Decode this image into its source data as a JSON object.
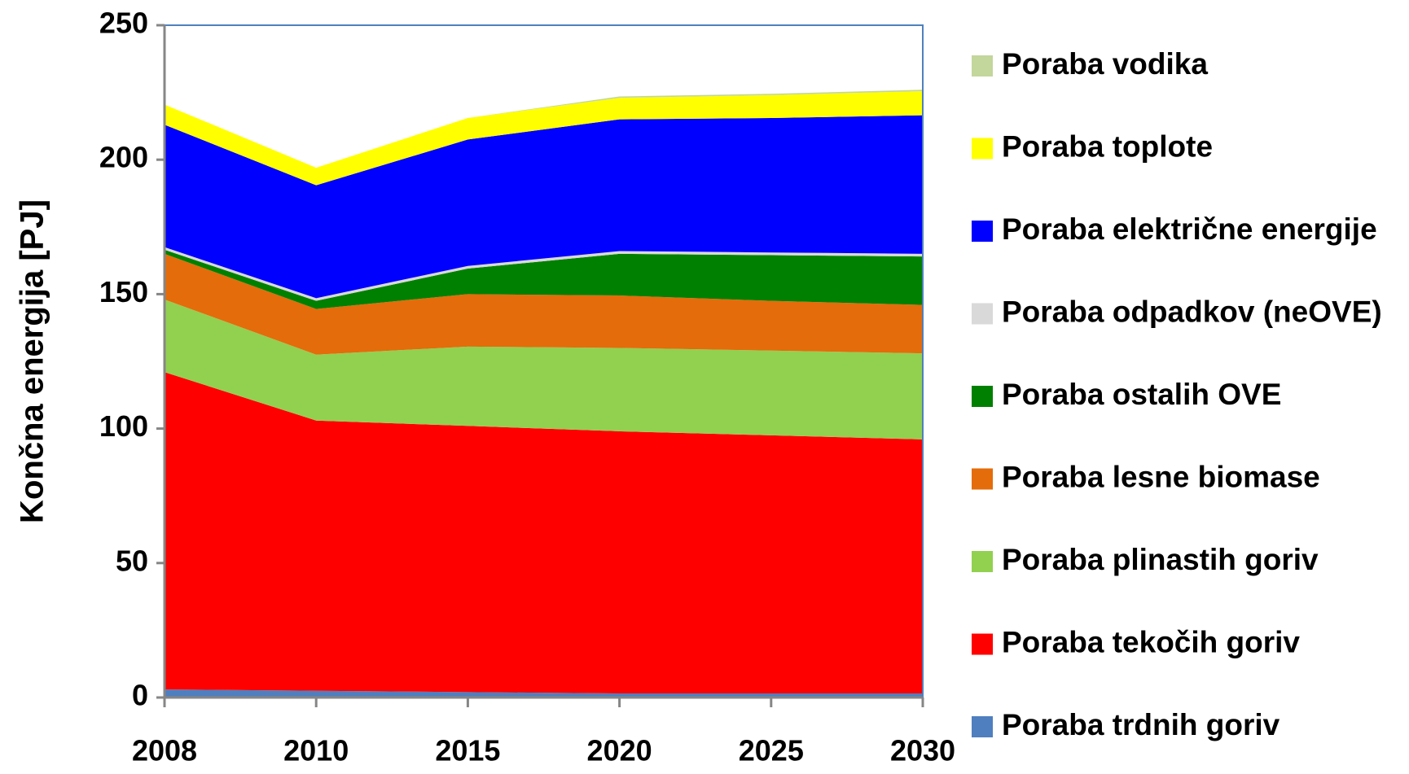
{
  "chart_data": {
    "type": "stacked_area",
    "y_label": "Končna energija [PJ]",
    "categories": [
      "2008",
      "2010",
      "2015",
      "2020",
      "2025",
      "2030"
    ],
    "ylim": [
      0,
      250
    ],
    "yticks": [
      0,
      50,
      100,
      150,
      200,
      250
    ],
    "series": [
      {
        "name": "Poraba trdnih goriv",
        "color": "#4f7fbf",
        "values": [
          3,
          2.5,
          2,
          1.5,
          1.5,
          1.5
        ]
      },
      {
        "name": "Poraba tekočih goriv",
        "color": "#ff0000",
        "values": [
          118,
          100.5,
          99,
          97.5,
          96,
          94.5
        ]
      },
      {
        "name": "Poraba plinastih goriv",
        "color": "#92d050",
        "values": [
          27,
          24.5,
          29.5,
          31,
          31.5,
          32
        ]
      },
      {
        "name": "Poraba lesne biomase",
        "color": "#e46c0a",
        "values": [
          17,
          17,
          19.5,
          19.5,
          18.5,
          18
        ]
      },
      {
        "name": "Poraba ostalih OVE",
        "color": "#008000",
        "values": [
          1.5,
          3,
          9.5,
          15.5,
          17,
          18
        ]
      },
      {
        "name": "Poraba odpadkov (neOVE)",
        "color": "#d9d9d9",
        "values": [
          1,
          1,
          1,
          1,
          1,
          1
        ]
      },
      {
        "name": "Poraba električne energije",
        "color": "#0000ff",
        "values": [
          45.5,
          42,
          47,
          49,
          50,
          51.5
        ]
      },
      {
        "name": "Poraba toplote",
        "color": "#ffff00",
        "values": [
          7.5,
          6.5,
          8,
          8,
          8.5,
          9
        ]
      },
      {
        "name": "Poraba vodika",
        "color": "#c3d69b",
        "values": [
          0,
          0,
          0,
          0.5,
          0.5,
          0.5
        ]
      }
    ]
  }
}
